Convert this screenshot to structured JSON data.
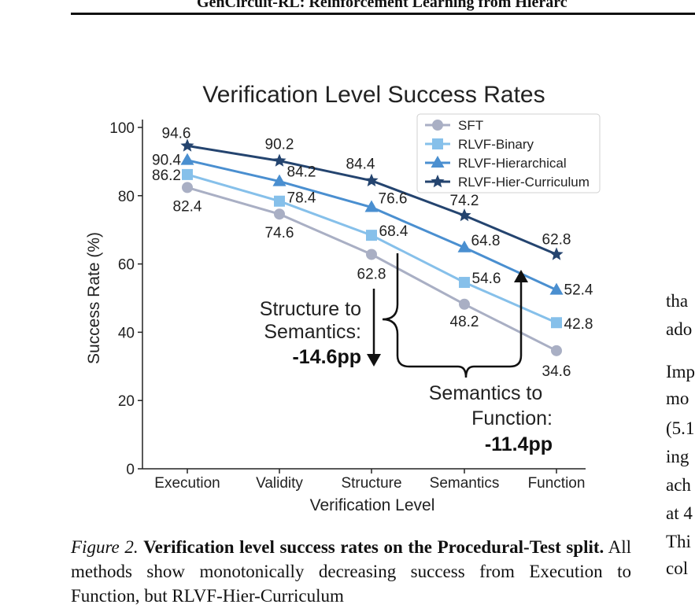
{
  "header": {
    "running_title": "GenCircuit-RL: Reinforcement Learning from Hierarc"
  },
  "chart_data": {
    "type": "line",
    "title": "Verification Level Success Rates",
    "xlabel": "Verification Level",
    "ylabel": "Success Rate (%)",
    "categories": [
      "Execution",
      "Validity",
      "Structure",
      "Semantics",
      "Function"
    ],
    "ylim": [
      0,
      100
    ],
    "yticks": [
      0,
      20,
      40,
      60,
      80,
      100
    ],
    "legend_position": "top-right",
    "series": [
      {
        "name": "SFT",
        "marker": "circle",
        "color": "#a9afc4",
        "values": [
          82.4,
          74.6,
          62.8,
          48.2,
          34.6
        ]
      },
      {
        "name": "RLVF-Binary",
        "marker": "square",
        "color": "#86c0ea",
        "values": [
          86.2,
          78.4,
          68.4,
          54.6,
          42.8
        ]
      },
      {
        "name": "RLVF-Hierarchical",
        "marker": "triangle",
        "color": "#4a8fd0",
        "values": [
          90.4,
          84.2,
          76.6,
          64.8,
          52.4
        ]
      },
      {
        "name": "RLVF-Hier-Curriculum",
        "marker": "star",
        "color": "#24446f",
        "values": [
          94.6,
          90.2,
          84.4,
          74.2,
          62.8
        ]
      }
    ],
    "annotations": [
      {
        "id": "structure-to-semantics",
        "line1": "Structure to",
        "line2": "Semantics:",
        "value": "-14.6pp"
      },
      {
        "id": "semantics-to-function",
        "line1": "Semantics to",
        "line2": "Function:",
        "value": "-11.4pp"
      }
    ]
  },
  "right_column": {
    "lines": [
      "tha",
      "ado",
      "Imp",
      "mo",
      "(5.1",
      "ing",
      "ach",
      "at 4",
      "Thi",
      "col"
    ]
  },
  "caption": {
    "figure_label": "Figure 2.",
    "bold_title": "Verification level success rates on the Procedural-Test split.",
    "body": "All methods show monotonically decreasing success from Execution to Function, but RLVF-Hier-Curriculum"
  }
}
